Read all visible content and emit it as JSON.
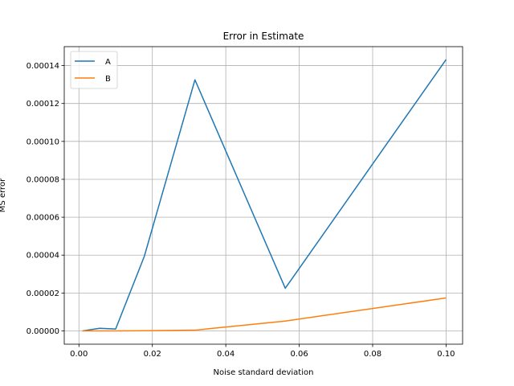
{
  "chart_data": {
    "type": "line",
    "title": "Error in Estimate",
    "xlabel": "Noise standard deviation",
    "ylabel": "MS error",
    "xlim": [
      -0.004,
      0.1045
    ],
    "ylim": [
      -7e-06,
      0.00015
    ],
    "xticks": [
      0.0,
      0.02,
      0.04,
      0.06,
      0.08,
      0.1
    ],
    "xtick_labels": [
      "0.00",
      "0.02",
      "0.04",
      "0.06",
      "0.08",
      "0.10"
    ],
    "yticks": [
      0.0,
      2e-05,
      4e-05,
      6e-05,
      8e-05,
      0.0001,
      0.00012,
      0.00014
    ],
    "ytick_labels": [
      "0.00000",
      "0.00002",
      "0.00004",
      "0.00006",
      "0.00008",
      "0.00010",
      "0.00012",
      "0.00014"
    ],
    "grid": true,
    "legend_position": "top-left",
    "x": [
      0.001,
      0.0056,
      0.01,
      0.0178,
      0.0316,
      0.0562,
      0.1
    ],
    "series": [
      {
        "name": "A",
        "color": "#1f77b4",
        "values": [
          0.0,
          1.4e-06,
          1e-06,
          3.93e-05,
          0.0001325,
          2.25e-05,
          0.0001432
        ]
      },
      {
        "name": "B",
        "color": "#ff7f0e",
        "values": [
          0.0,
          0.0,
          0.0,
          1e-07,
          4e-07,
          5.2e-06,
          1.74e-05
        ]
      }
    ]
  }
}
